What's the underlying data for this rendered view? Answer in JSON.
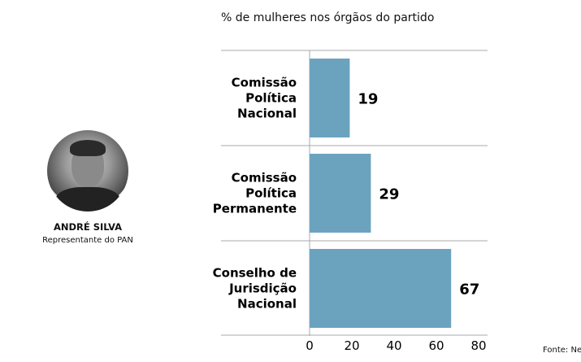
{
  "person": {
    "name": "ANDRÉ SILVA",
    "role": "Representante do PAN"
  },
  "source": "Fonte: Neg",
  "colors": {
    "bar": "#6ba3bf",
    "grid": "#aaaaaa"
  },
  "chart_data": {
    "type": "bar",
    "orientation": "horizontal",
    "title": "% de mulheres nos órgãos do partido",
    "categories": [
      [
        "Comissão",
        "Política",
        "Nacional"
      ],
      [
        "Comissão",
        "Política",
        "Permanente"
      ],
      [
        "Conselho de",
        "Jurisdição",
        "Nacional"
      ]
    ],
    "values": [
      19,
      29,
      67
    ],
    "xlim": [
      0,
      80
    ],
    "xticks": [
      0,
      20,
      40,
      60,
      80
    ],
    "xlabel": "",
    "ylabel": "",
    "grid": false
  }
}
